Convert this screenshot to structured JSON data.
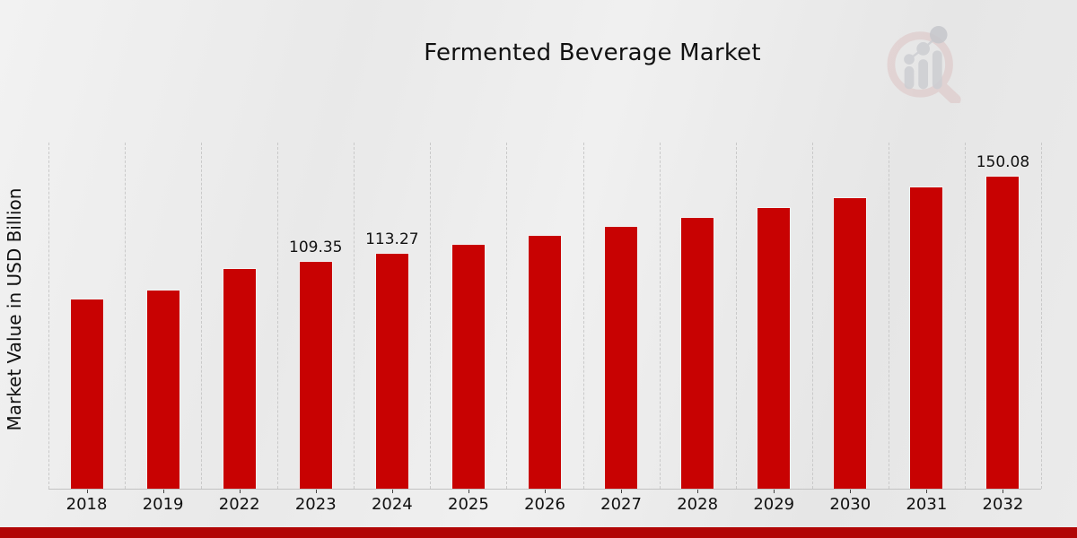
{
  "header": {
    "title": "Fermented Beverage Market",
    "logo_name": "magnifier-bar-chart-logo"
  },
  "chart_data": {
    "type": "bar",
    "title": "Fermented Beverage Market",
    "xlabel": "",
    "ylabel": "Market Value in USD Billion",
    "categories": [
      "2018",
      "2019",
      "2022",
      "2023",
      "2024",
      "2025",
      "2026",
      "2027",
      "2028",
      "2029",
      "2030",
      "2031",
      "2032"
    ],
    "values": [
      91.2,
      95.5,
      105.8,
      109.35,
      113.27,
      117.33,
      121.53,
      125.88,
      130.39,
      135.06,
      139.89,
      144.9,
      150.08
    ],
    "bar_labels": [
      "",
      "",
      "",
      "109.35",
      "113.27",
      "",
      "",
      "",
      "",
      "",
      "",
      "",
      "150.08"
    ],
    "bar_color": "#c80202",
    "ylim": [
      0,
      166
    ],
    "grid": "vertical-dashed",
    "gridline_color": "#c9c9c9",
    "legend": "none"
  },
  "footer": {
    "accent_bar_color": "#b10606"
  },
  "colors": {
    "background": "#ebebeb",
    "text": "#111111",
    "logo_ring": "#dcc3c3",
    "logo_bars": "#cdced2"
  }
}
